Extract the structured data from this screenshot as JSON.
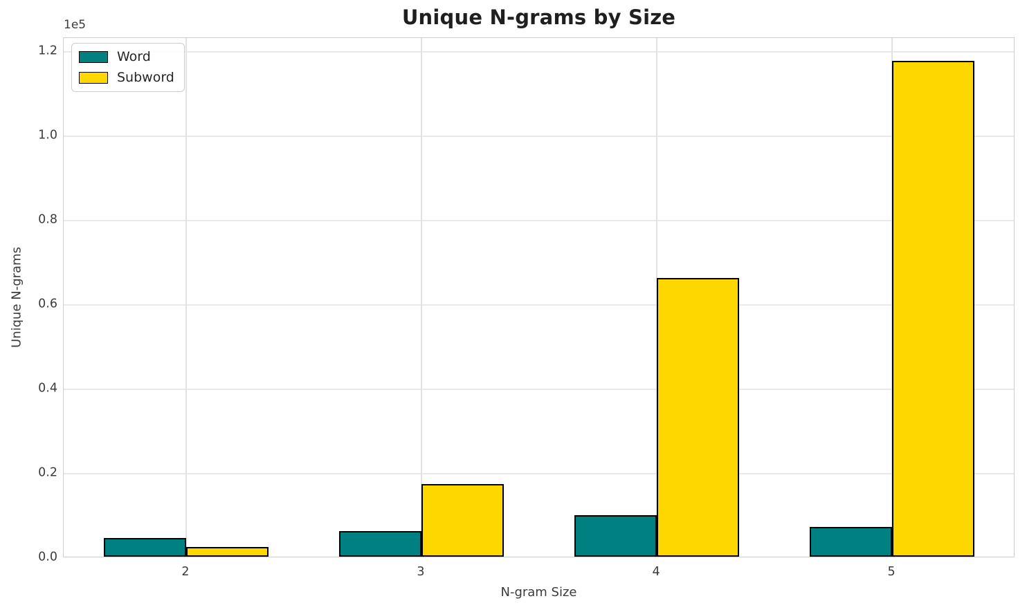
{
  "chart_data": {
    "type": "bar",
    "title": "Unique N-grams by Size",
    "xlabel": "N-gram Size",
    "ylabel": "Unique N-grams",
    "offset_label": "1e5",
    "categories": [
      "2",
      "3",
      "4",
      "5"
    ],
    "series": [
      {
        "name": "Word",
        "color": "#008080",
        "values": [
          4500,
          6000,
          9800,
          7100
        ]
      },
      {
        "name": "Subword",
        "color": "#FFD700",
        "values": [
          2350,
          17200,
          66000,
          117500
        ]
      }
    ],
    "bar_edge_color": "#000000",
    "ylim": [
      0,
      123300
    ],
    "yticks": [
      0,
      20000,
      40000,
      60000,
      80000,
      100000,
      120000
    ],
    "ytick_labels": [
      "0.0",
      "0.2",
      "0.4",
      "0.6",
      "0.8",
      "1.0",
      "1.2"
    ],
    "grid": true,
    "legend_position": "upper left",
    "colors": {
      "grid": "#e9e9e9",
      "spine": "#cfcfcf",
      "text": "#3b3b3b",
      "title": "#1f1f1f"
    }
  }
}
